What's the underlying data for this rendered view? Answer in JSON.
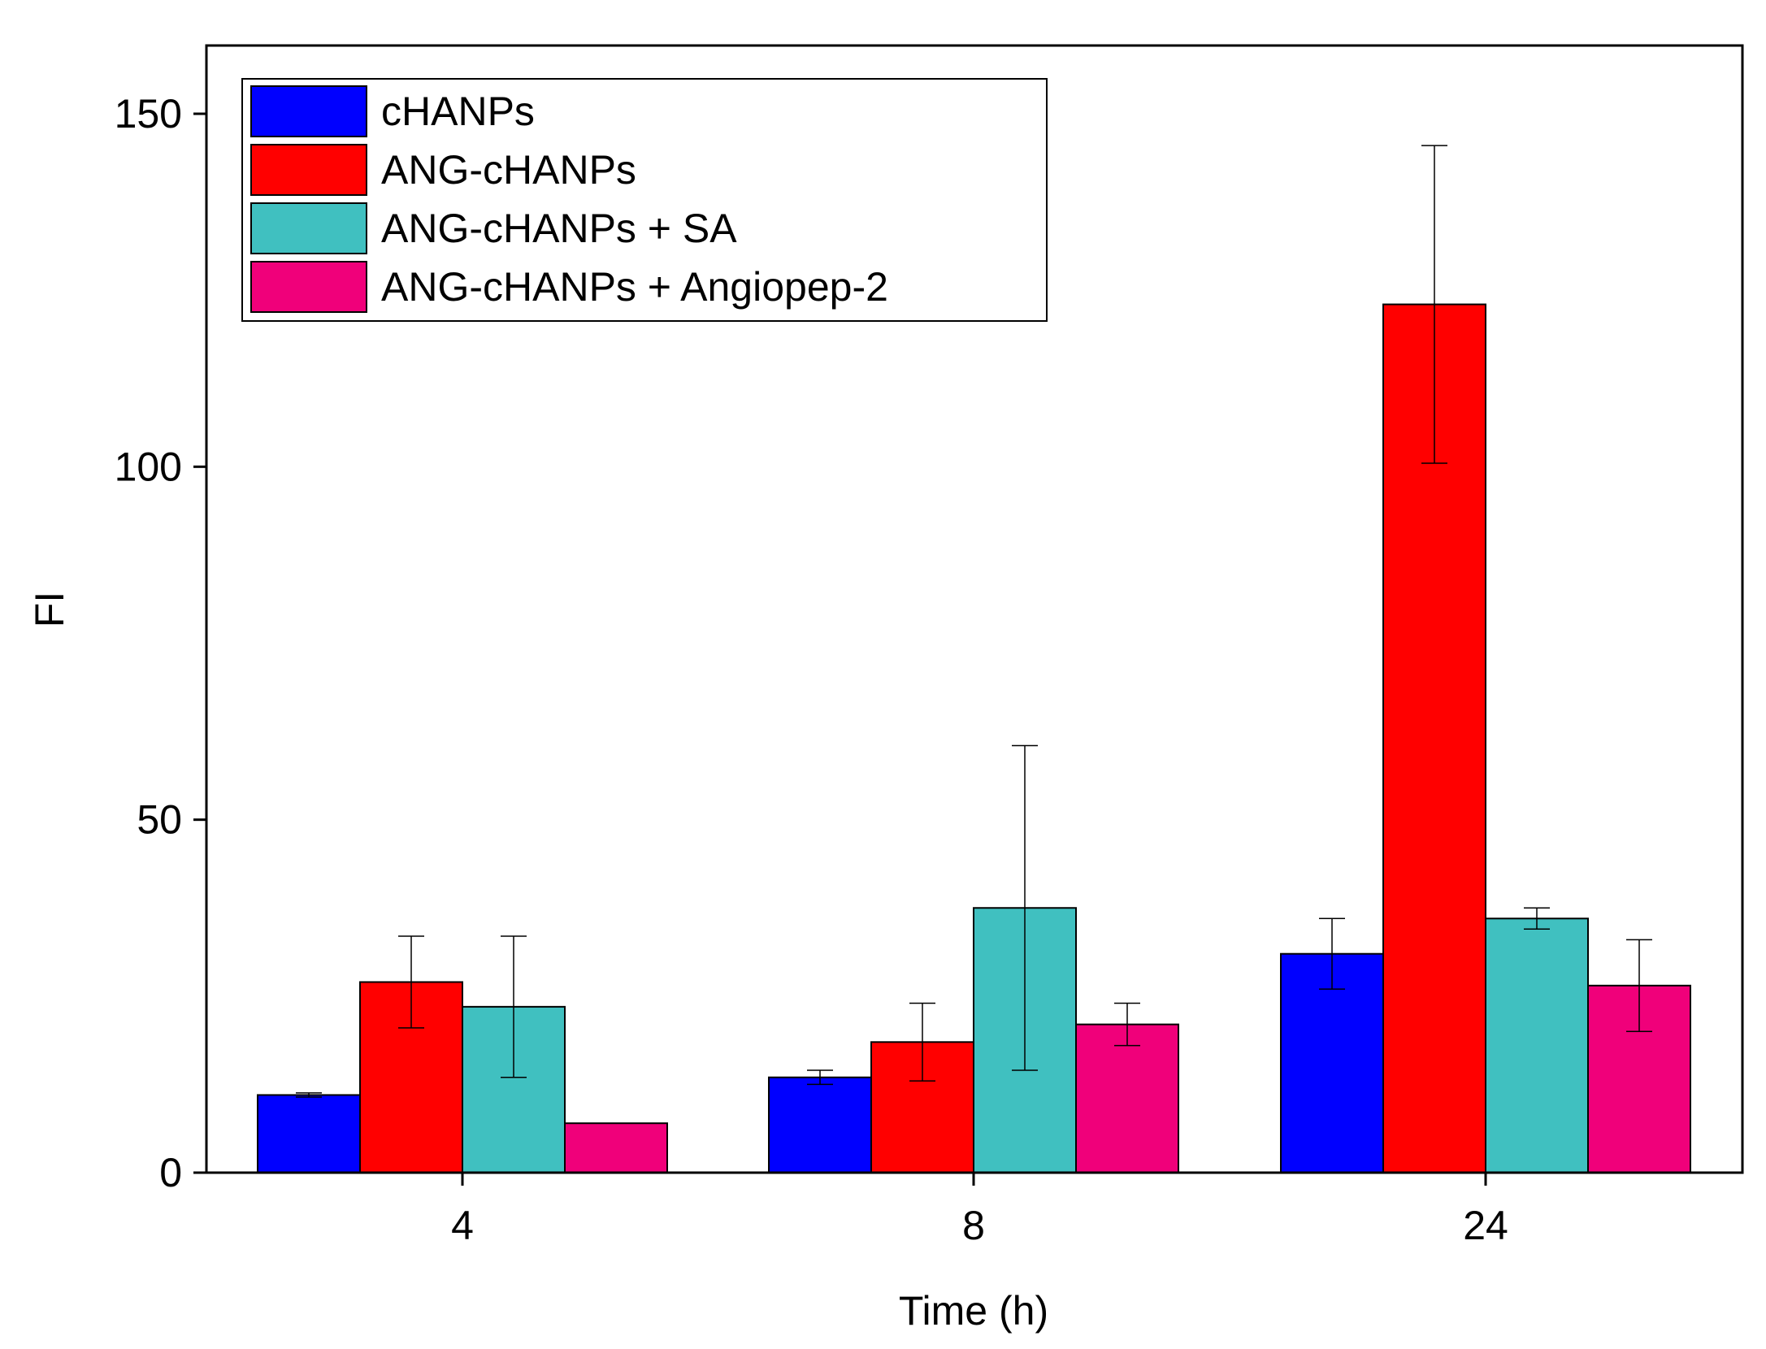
{
  "chart_data": {
    "type": "bar",
    "title": "",
    "xlabel": "Time (h)",
    "ylabel": "FI",
    "categories": [
      "4",
      "8",
      "24"
    ],
    "ylim": [
      0,
      160
    ],
    "yticks": [
      0,
      50,
      100,
      150
    ],
    "grid": false,
    "legend_position": "top-left",
    "series": [
      {
        "name": "cHANPs",
        "color": "#0000ff",
        "values": [
          11,
          13.5,
          31
        ],
        "errors": [
          0.3,
          1,
          5
        ]
      },
      {
        "name": "ANG-cHANPs",
        "color": "#ff0000",
        "values": [
          27,
          18.5,
          123
        ],
        "errors": [
          6.5,
          5.5,
          22.5
        ]
      },
      {
        "name": "ANG-cHANPs + SA",
        "color": "#40c0c0",
        "values": [
          23.5,
          37.5,
          36
        ],
        "errors": [
          10,
          23,
          1.5
        ]
      },
      {
        "name": "ANG-cHANPs + Angiopep-2",
        "color": "#f0007a",
        "values": [
          7,
          21,
          26.5
        ],
        "errors": [
          0,
          3,
          6.5
        ]
      }
    ]
  }
}
